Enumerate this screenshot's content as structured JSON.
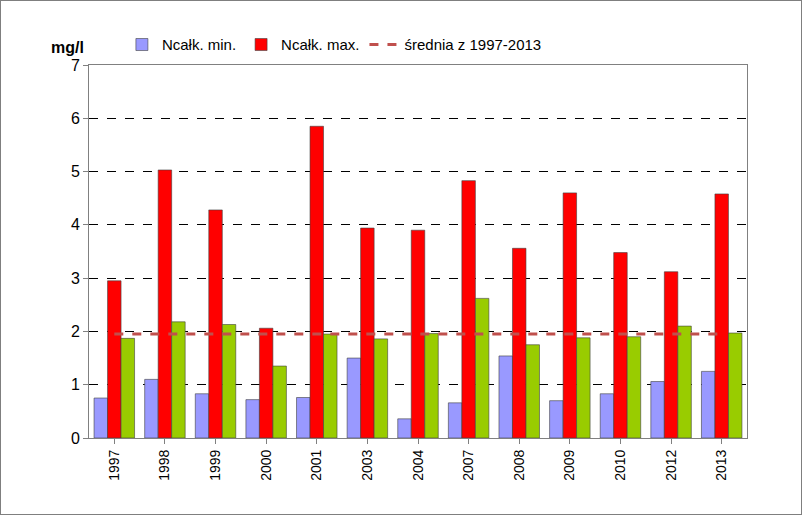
{
  "chart_data": {
    "type": "bar",
    "ylabel": "mg/l",
    "categories": [
      "1997",
      "1998",
      "1999",
      "2000",
      "2001",
      "2003",
      "2004",
      "2007",
      "2008",
      "2009",
      "2010",
      "2012",
      "2013"
    ],
    "series": [
      {
        "name": "Ncałk. min.",
        "color": "#9999ff",
        "values": [
          0.75,
          1.1,
          0.83,
          0.72,
          0.76,
          1.5,
          0.36,
          0.66,
          1.54,
          0.7,
          0.83,
          1.06,
          1.25
        ]
      },
      {
        "name": "Ncałk. max.",
        "color": "#ff0000",
        "values": [
          2.95,
          5.03,
          4.28,
          2.06,
          5.85,
          3.94,
          3.9,
          4.83,
          3.56,
          4.6,
          3.48,
          3.12,
          4.58
        ]
      },
      {
        "color": "#99cc00",
        "values": [
          1.87,
          2.18,
          2.13,
          1.35,
          1.95,
          1.86,
          1.96,
          2.62,
          1.75,
          1.88,
          1.9,
          2.1,
          1.97
        ]
      },
      {
        "name": "średnia z 1997-2013",
        "type": "line",
        "line_style": "dashed",
        "color": "#c0504d",
        "values": [
          1.95,
          1.95,
          1.95,
          1.95,
          1.95,
          1.95,
          1.95,
          1.95,
          1.95,
          1.95,
          1.95,
          1.95,
          1.95
        ]
      }
    ],
    "ylim": [
      0,
      7
    ],
    "yticks": [
      0,
      1,
      2,
      3,
      4,
      5,
      6,
      7
    ],
    "grid": true,
    "legend": "top"
  }
}
